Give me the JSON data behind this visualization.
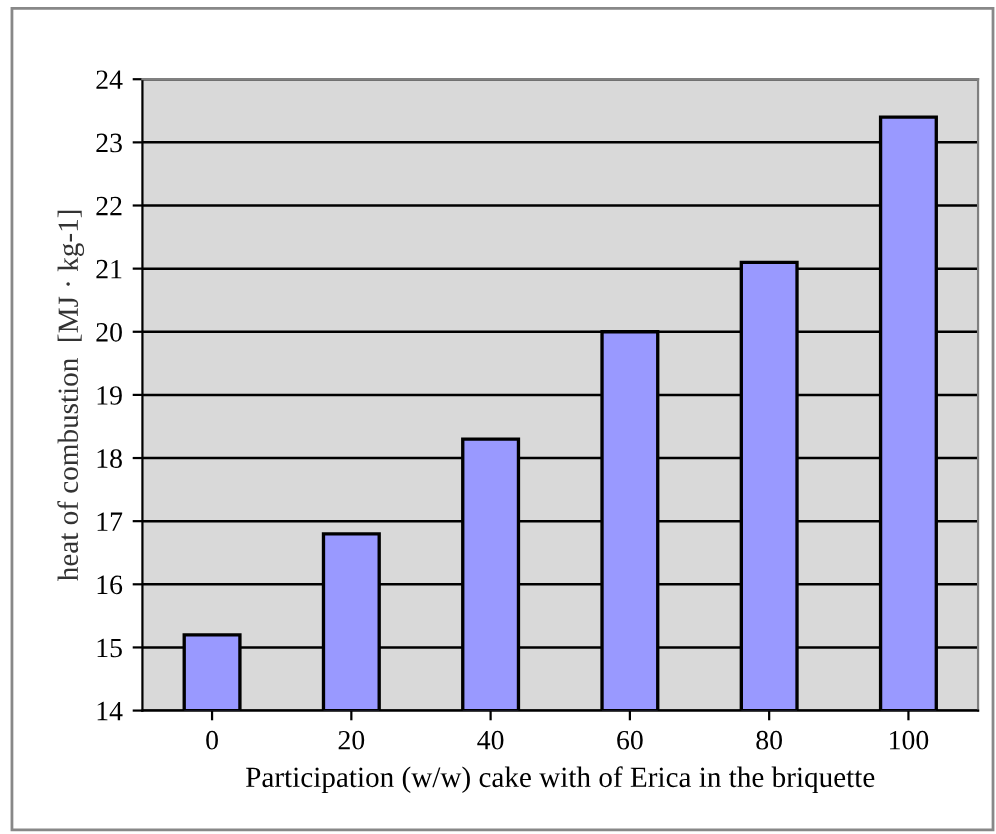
{
  "chart_data": {
    "type": "bar",
    "xlabel": "Participation (w/w) cake with of Erica in the briquette",
    "ylabel": "heat of combustion  [MJ · kg-1]",
    "categories": [
      "0",
      "20",
      "40",
      "60",
      "80",
      "100"
    ],
    "values": [
      15.2,
      16.8,
      18.3,
      20.0,
      21.1,
      23.4
    ],
    "color": "#9999ff",
    "ylim": [
      14,
      24
    ],
    "yticks": [
      14,
      15,
      16,
      17,
      18,
      19,
      20,
      21,
      22,
      23,
      24
    ],
    "grid": "y"
  }
}
